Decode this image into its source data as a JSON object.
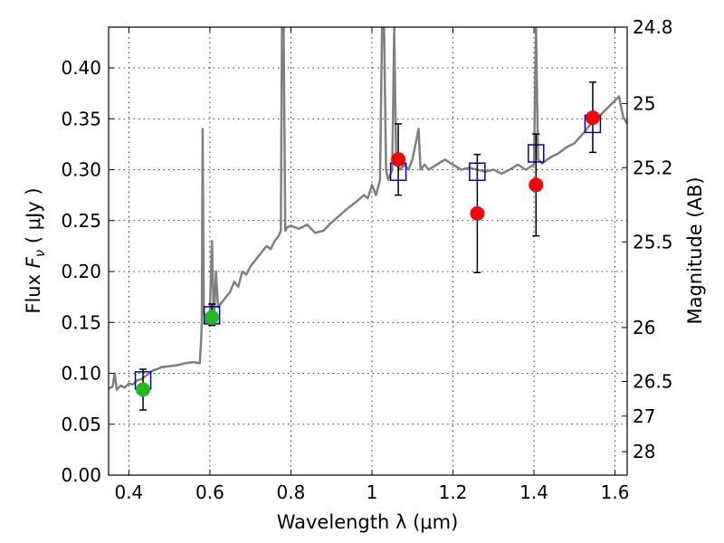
{
  "chart_data": {
    "type": "scatter",
    "xlabel": "Wavelength  λ (μm)",
    "ylabel": "Flux  F_ν  ( μJy )",
    "ylabel_parts": {
      "pre": "Flux  ",
      "sym": "F",
      "sub": "ν",
      "post": "  ( μJy )"
    },
    "y2label": "Magnitude (AB)",
    "xlim": [
      0.35,
      1.63
    ],
    "ylim": [
      0.0,
      0.44
    ],
    "grid": true,
    "x_ticks": [
      {
        "value": 0.4,
        "label": "0.4"
      },
      {
        "value": 0.6,
        "label": "0.6"
      },
      {
        "value": 0.8,
        "label": "0.8"
      },
      {
        "value": 1.0,
        "label": "1"
      },
      {
        "value": 1.2,
        "label": "1.2"
      },
      {
        "value": 1.4,
        "label": "1.4"
      },
      {
        "value": 1.6,
        "label": "1.6"
      }
    ],
    "y_ticks": [
      {
        "value": 0.0,
        "label": "0.00"
      },
      {
        "value": 0.05,
        "label": "0.05"
      },
      {
        "value": 0.1,
        "label": "0.10"
      },
      {
        "value": 0.15,
        "label": "0.15"
      },
      {
        "value": 0.2,
        "label": "0.20"
      },
      {
        "value": 0.25,
        "label": "0.25"
      },
      {
        "value": 0.3,
        "label": "0.30"
      },
      {
        "value": 0.35,
        "label": "0.35"
      },
      {
        "value": 0.4,
        "label": "0.40"
      }
    ],
    "y2_ticks": [
      {
        "flux": 0.44,
        "label": "24.8"
      },
      {
        "flux": 0.365,
        "label": "25"
      },
      {
        "flux": 0.302,
        "label": "25.2"
      },
      {
        "flux": 0.229,
        "label": "25.5"
      },
      {
        "flux": 0.145,
        "label": "26"
      },
      {
        "flux": 0.092,
        "label": "26.5"
      },
      {
        "flux": 0.058,
        "label": "27"
      },
      {
        "flux": 0.023,
        "label": "28"
      }
    ],
    "series": [
      {
        "kind": "line",
        "color": "#808080",
        "points": [
          [
            0.35,
            0.085
          ],
          [
            0.36,
            0.087
          ],
          [
            0.365,
            0.1
          ],
          [
            0.37,
            0.084
          ],
          [
            0.38,
            0.088
          ],
          [
            0.39,
            0.086
          ],
          [
            0.4,
            0.09
          ],
          [
            0.41,
            0.089
          ],
          [
            0.42,
            0.093
          ],
          [
            0.43,
            0.094
          ],
          [
            0.44,
            0.097
          ],
          [
            0.45,
            0.1
          ],
          [
            0.46,
            0.103
          ],
          [
            0.47,
            0.104
          ],
          [
            0.48,
            0.106
          ],
          [
            0.5,
            0.107
          ],
          [
            0.52,
            0.108
          ],
          [
            0.54,
            0.11
          ],
          [
            0.56,
            0.111
          ],
          [
            0.575,
            0.11
          ],
          [
            0.578,
            0.13
          ],
          [
            0.58,
            0.15
          ],
          [
            0.582,
            0.34
          ],
          [
            0.585,
            0.16
          ],
          [
            0.59,
            0.15
          ],
          [
            0.595,
            0.156
          ],
          [
            0.6,
            0.16
          ],
          [
            0.605,
            0.23
          ],
          [
            0.61,
            0.15
          ],
          [
            0.615,
            0.2
          ],
          [
            0.62,
            0.165
          ],
          [
            0.63,
            0.17
          ],
          [
            0.64,
            0.175
          ],
          [
            0.65,
            0.18
          ],
          [
            0.66,
            0.19
          ],
          [
            0.67,
            0.185
          ],
          [
            0.68,
            0.2
          ],
          [
            0.69,
            0.197
          ],
          [
            0.7,
            0.205
          ],
          [
            0.71,
            0.21
          ],
          [
            0.72,
            0.215
          ],
          [
            0.73,
            0.22
          ],
          [
            0.74,
            0.225
          ],
          [
            0.75,
            0.222
          ],
          [
            0.76,
            0.23
          ],
          [
            0.77,
            0.235
          ],
          [
            0.775,
            0.24
          ],
          [
            0.778,
            0.44
          ],
          [
            0.782,
            0.44
          ],
          [
            0.786,
            0.24
          ],
          [
            0.79,
            0.243
          ],
          [
            0.8,
            0.245
          ],
          [
            0.82,
            0.242
          ],
          [
            0.84,
            0.246
          ],
          [
            0.86,
            0.238
          ],
          [
            0.88,
            0.24
          ],
          [
            0.9,
            0.248
          ],
          [
            0.92,
            0.255
          ],
          [
            0.94,
            0.262
          ],
          [
            0.96,
            0.268
          ],
          [
            0.98,
            0.275
          ],
          [
            0.99,
            0.272
          ],
          [
            1.0,
            0.285
          ],
          [
            1.01,
            0.275
          ],
          [
            1.02,
            0.29
          ],
          [
            1.025,
            0.44
          ],
          [
            1.03,
            0.44
          ],
          [
            1.035,
            0.3
          ],
          [
            1.04,
            0.29
          ],
          [
            1.05,
            0.3
          ],
          [
            1.055,
            0.44
          ],
          [
            1.06,
            0.305
          ],
          [
            1.07,
            0.3
          ],
          [
            1.08,
            0.305
          ],
          [
            1.09,
            0.3
          ],
          [
            1.1,
            0.31
          ],
          [
            1.115,
            0.34
          ],
          [
            1.12,
            0.3
          ],
          [
            1.13,
            0.305
          ],
          [
            1.14,
            0.3
          ],
          [
            1.16,
            0.305
          ],
          [
            1.18,
            0.31
          ],
          [
            1.2,
            0.305
          ],
          [
            1.22,
            0.3
          ],
          [
            1.24,
            0.302
          ],
          [
            1.26,
            0.3
          ],
          [
            1.28,
            0.298
          ],
          [
            1.3,
            0.3
          ],
          [
            1.32,
            0.296
          ],
          [
            1.34,
            0.3
          ],
          [
            1.36,
            0.305
          ],
          [
            1.38,
            0.3
          ],
          [
            1.4,
            0.305
          ],
          [
            1.405,
            0.44
          ],
          [
            1.41,
            0.31
          ],
          [
            1.42,
            0.306
          ],
          [
            1.44,
            0.312
          ],
          [
            1.46,
            0.316
          ],
          [
            1.48,
            0.322
          ],
          [
            1.5,
            0.326
          ],
          [
            1.52,
            0.335
          ],
          [
            1.54,
            0.345
          ],
          [
            1.56,
            0.352
          ],
          [
            1.58,
            0.36
          ],
          [
            1.6,
            0.368
          ],
          [
            1.61,
            0.372
          ],
          [
            1.62,
            0.352
          ],
          [
            1.63,
            0.345
          ]
        ]
      },
      {
        "kind": "square",
        "color": "#0000cc",
        "points": [
          [
            0.435,
            0.093
          ],
          [
            0.605,
            0.157
          ],
          [
            1.065,
            0.298
          ],
          [
            1.26,
            0.298
          ],
          [
            1.405,
            0.316
          ],
          [
            1.545,
            0.345
          ]
        ]
      },
      {
        "kind": "errorbar",
        "color": "#000000",
        "points": [
          {
            "x": 0.435,
            "lo": 0.064,
            "hi": 0.104
          },
          {
            "x": 0.605,
            "lo": 0.147,
            "hi": 0.168
          },
          {
            "x": 1.065,
            "lo": 0.275,
            "hi": 0.345
          },
          {
            "x": 1.26,
            "lo": 0.199,
            "hi": 0.315
          },
          {
            "x": 1.405,
            "lo": 0.235,
            "hi": 0.335
          },
          {
            "x": 1.545,
            "lo": 0.317,
            "hi": 0.386
          }
        ]
      },
      {
        "kind": "circle",
        "color": "#22bb22",
        "points": [
          [
            0.435,
            0.084
          ],
          [
            0.605,
            0.155
          ]
        ]
      },
      {
        "kind": "circle",
        "color": "#ff0000",
        "points": [
          [
            1.065,
            0.31
          ],
          [
            1.26,
            0.257
          ],
          [
            1.405,
            0.285
          ],
          [
            1.545,
            0.351
          ]
        ]
      }
    ]
  }
}
